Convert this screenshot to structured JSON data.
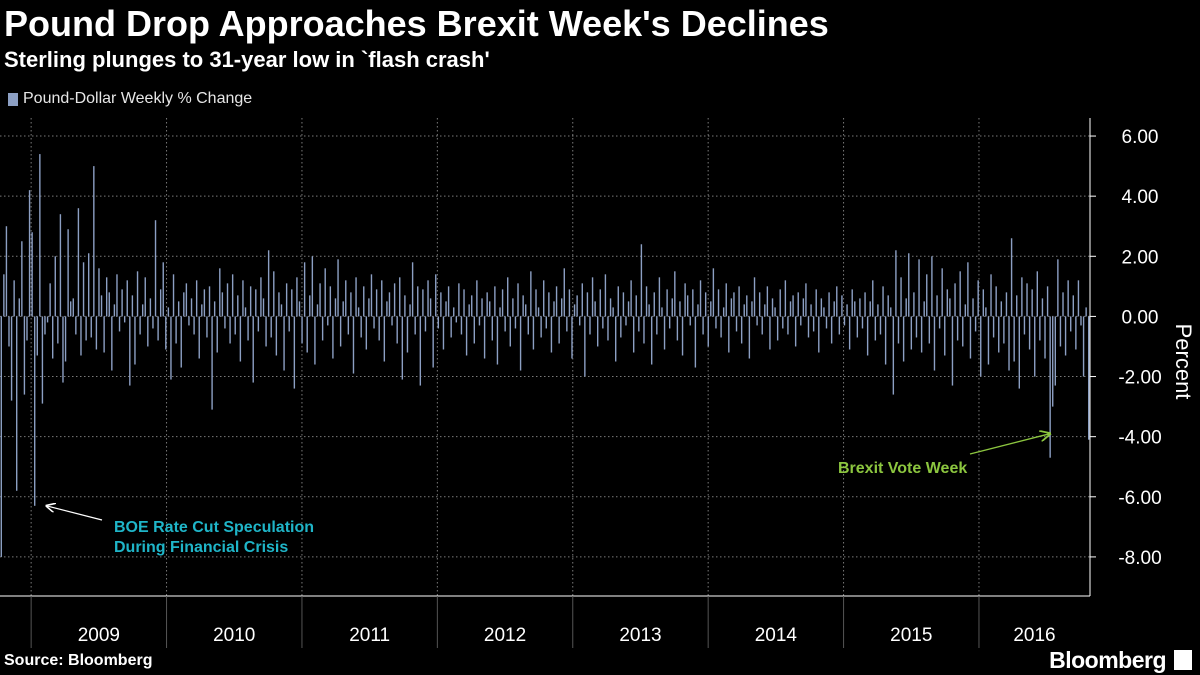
{
  "chart_data": {
    "type": "bar",
    "title": "Pound Drop Approaches Brexit Week's Declines",
    "subtitle": "Sterling plunges to 31-year low in `flash crash'",
    "series_name": "Pound-Dollar Weekly % Change",
    "ylabel": "Percent",
    "ylim": [
      -9.3,
      6.6
    ],
    "yticks": [
      6,
      4,
      2,
      0,
      -2,
      -4,
      -6,
      -8
    ],
    "ytick_labels": [
      "6.00",
      "4.00",
      "2.00",
      "0.00",
      "-2.00",
      "-4.00",
      "-6.00",
      "-8.00"
    ],
    "xlim": [
      2008.77,
      2016.82
    ],
    "year_labels": [
      "2009",
      "2010",
      "2011",
      "2012",
      "2013",
      "2014",
      "2015",
      "2016"
    ],
    "grid": true,
    "legend_position": "top-left",
    "bar_color": "#8c9fc3",
    "source": "Source: Bloomberg",
    "brand": "Bloomberg",
    "annotations": [
      {
        "text": [
          "BOE Rate Cut Speculation",
          "During Financial Crisis"
        ],
        "color": "#1fb5c8",
        "arrow_color": "#ffffff",
        "target": [
          2008.98,
          -6.3
        ]
      },
      {
        "text": [
          "Brexit Vote Week"
        ],
        "color": "#8cc63f",
        "arrow_color": "#8cc63f",
        "target": [
          2016.48,
          -3.9
        ]
      }
    ],
    "highlighted_values": [
      {
        "x": 2008.78,
        "y": -8.0
      },
      {
        "x": 2008.86,
        "y": -5.8
      },
      {
        "x": 2008.94,
        "y": 4.2
      },
      {
        "x": 2008.97,
        "y": -6.3
      },
      {
        "x": 2009.0,
        "y": 5.4
      },
      {
        "x": 2009.35,
        "y": 5.0
      },
      {
        "x": 2009.73,
        "y": -3.1
      },
      {
        "x": 2012.98,
        "y": 2.4
      },
      {
        "x": 2015.94,
        "y": 2.6
      },
      {
        "x": 2016.48,
        "y": -4.7
      },
      {
        "x": 2016.51,
        "y": 1.9
      },
      {
        "x": 2016.77,
        "y": -4.1
      }
    ],
    "weekly_values": [
      -8.0,
      1.4,
      3.0,
      -1.0,
      -2.8,
      1.2,
      -5.8,
      0.6,
      2.5,
      -2.6,
      -0.8,
      4.2,
      2.8,
      -6.3,
      -1.3,
      5.4,
      -2.9,
      -0.6,
      -0.2,
      1.1,
      -1.4,
      2.0,
      -0.9,
      3.4,
      -2.2,
      -1.5,
      2.9,
      0.5,
      0.6,
      -0.6,
      3.6,
      -1.3,
      1.8,
      -0.8,
      2.1,
      -0.7,
      5.0,
      -1.1,
      1.6,
      0.7,
      -1.2,
      1.3,
      0.8,
      -1.8,
      0.4,
      1.4,
      -0.5,
      0.9,
      -0.2,
      1.2,
      -2.3,
      0.7,
      -1.6,
      1.5,
      -0.6,
      0.4,
      1.3,
      -1.0,
      0.6,
      -0.4,
      3.2,
      -0.8,
      0.9,
      1.8,
      -1.1,
      0.3,
      -2.1,
      1.4,
      -0.9,
      0.5,
      -1.7,
      0.8,
      1.1,
      -0.3,
      0.6,
      -0.6,
      1.2,
      -1.4,
      0.4,
      0.9,
      -0.7,
      1.0,
      -3.1,
      0.5,
      -1.2,
      1.6,
      0.8,
      -0.4,
      1.1,
      -0.9,
      1.4,
      -0.6,
      0.7,
      -1.5,
      1.2,
      0.3,
      -0.8,
      1.0,
      -2.2,
      0.9,
      -0.5,
      1.3,
      0.6,
      -1.0,
      2.2,
      -0.7,
      1.5,
      -1.3,
      0.8,
      0.4,
      -1.8,
      1.1,
      -0.5,
      0.9,
      -2.4,
      1.3,
      0.5,
      -0.9,
      1.8,
      -1.2,
      0.7,
      2.0,
      -1.6,
      0.4,
      1.1,
      -0.8,
      1.6,
      -0.3,
      1.0,
      -1.4,
      0.6,
      1.9,
      -1.0,
      0.5,
      1.2,
      -0.6,
      0.8,
      -1.9,
      1.3,
      0.3,
      -0.7,
      1.0,
      -1.1,
      0.6,
      1.4,
      -0.4,
      0.9,
      -0.8,
      1.2,
      -1.5,
      0.5,
      0.8,
      -0.3,
      1.1,
      -0.9,
      1.3,
      -2.1,
      0.7,
      -1.2,
      0.4,
      1.8,
      -0.6,
      1.0,
      -2.3,
      0.9,
      -0.5,
      1.2,
      0.6,
      -1.7,
      1.4,
      -0.4,
      0.8,
      -1.1,
      0.5,
      1.0,
      -0.7,
      0.3,
      -0.2,
      1.1,
      -0.6,
      0.9,
      -1.3,
      0.4,
      0.7,
      -0.9,
      1.2,
      -0.3,
      0.6,
      -1.4,
      0.8,
      0.5,
      -0.8,
      1.0,
      -1.6,
      0.3,
      0.9,
      -0.5,
      1.3,
      -1.0,
      0.6,
      -0.4,
      1.1,
      -1.8,
      0.7,
      0.4,
      -0.6,
      1.5,
      -1.1,
      0.9,
      0.3,
      -0.7,
      1.2,
      -0.4,
      0.8,
      -1.2,
      0.5,
      1.0,
      -0.9,
      0.6,
      1.6,
      -0.5,
      0.9,
      -1.4,
      0.4,
      0.7,
      -0.3,
      1.1,
      -2.0,
      0.8,
      -0.6,
      1.3,
      0.5,
      -1.0,
      0.9,
      -0.4,
      1.4,
      -0.8,
      0.6,
      0.3,
      -1.5,
      1.0,
      -0.7,
      0.8,
      -0.3,
      0.5,
      1.2,
      -1.2,
      0.7,
      -0.5,
      2.4,
      -0.9,
      1.0,
      0.4,
      -1.6,
      0.8,
      -0.6,
      1.3,
      0.3,
      -1.1,
      0.9,
      -0.4,
      0.6,
      1.5,
      -0.8,
      0.5,
      -1.3,
      1.1,
      0.7,
      -0.3,
      0.9,
      -1.7,
      0.4,
      1.2,
      -0.6,
      0.8,
      -1.0,
      0.5,
      1.6,
      -0.4,
      0.9,
      -0.7,
      0.3,
      1.1,
      -1.2,
      0.6,
      0.8,
      -0.5,
      1.0,
      -0.9,
      0.4,
      0.7,
      -1.4,
      0.5,
      1.3,
      -0.3,
      0.8,
      -0.6,
      0.4,
      1.0,
      -1.1,
      0.6,
      0.3,
      -0.8,
      0.9,
      -0.4,
      1.2,
      -0.6,
      0.5,
      0.7,
      -1.0,
      0.8,
      -0.3,
      0.6,
      1.1,
      -0.7,
      0.4,
      -0.5,
      0.9,
      -1.2,
      0.6,
      0.3,
      -0.4,
      0.8,
      -0.9,
      0.5,
      1.0,
      -0.6,
      0.7,
      -0.3,
      0.4,
      -1.1,
      0.9,
      0.5,
      -0.7,
      0.6,
      -0.4,
      0.8,
      -1.3,
      0.5,
      1.2,
      -0.8,
      0.4,
      -0.6,
      1.0,
      -1.6,
      0.7,
      0.3,
      -2.6,
      2.2,
      -0.9,
      1.3,
      -1.5,
      0.6,
      2.1,
      -1.1,
      0.8,
      -0.7,
      1.9,
      -1.2,
      0.5,
      1.4,
      -0.9,
      2.0,
      -1.8,
      0.7,
      -0.4,
      1.6,
      -1.3,
      0.9,
      0.6,
      -2.3,
      1.1,
      -0.8,
      1.5,
      -1.0,
      0.4,
      1.8,
      -1.4,
      0.6,
      -0.5,
      1.2,
      -2.0,
      0.9,
      0.3,
      -1.6,
      1.4,
      -0.7,
      1.0,
      -1.2,
      0.5,
      -0.9,
      0.8,
      -1.8,
      2.6,
      -1.5,
      0.7,
      -2.4,
      1.3,
      -0.6,
      1.1,
      -1.1,
      0.9,
      -2.0,
      1.5,
      -0.8,
      0.6,
      -1.4,
      1.0,
      -4.7,
      -3.0,
      -2.3,
      1.9,
      -1.0,
      0.8,
      -1.3,
      1.2,
      -0.5,
      0.7,
      -1.1,
      1.2,
      -0.3,
      -2.0,
      0.3,
      -4.1
    ]
  }
}
